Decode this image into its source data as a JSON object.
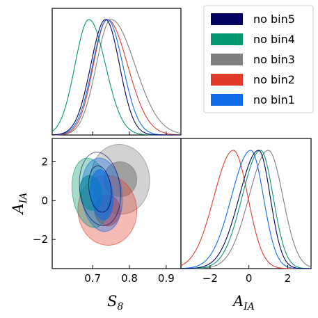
{
  "chart_data": {
    "type": "triangle-corner-plot",
    "colors": {
      "no bin5": "#00025e",
      "no bin4": "#009870",
      "no bin3": "#7f7f7f",
      "no bin2": "#e23b2a",
      "no bin1": "#0e6de6"
    },
    "legend": {
      "placement": "top-right",
      "entries": [
        "no bin5",
        "no bin4",
        "no bin3",
        "no bin2",
        "no bin1"
      ]
    },
    "axes": {
      "S8": {
        "label": "S_8",
        "range": [
          0.59,
          0.94
        ],
        "ticks": [
          "0.7",
          "0.8",
          "0.9"
        ],
        "tick_values": [
          0.7,
          0.8,
          0.9
        ]
      },
      "AIA": {
        "label": "A_IA",
        "range": [
          -3.5,
          3.2
        ],
        "ticks": [
          "−2",
          "0",
          "2"
        ],
        "tick_values": [
          -2,
          0,
          2
        ]
      }
    },
    "marginal_S8": [
      {
        "name": "no bin5",
        "peak": 0.735,
        "sigma_left": 0.04,
        "sigma_right": 0.038
      },
      {
        "name": "no bin4",
        "peak": 0.69,
        "sigma_left": 0.038,
        "sigma_right": 0.045
      },
      {
        "name": "no bin3",
        "peak": 0.75,
        "sigma_left": 0.04,
        "sigma_right": 0.065
      },
      {
        "name": "no bin2",
        "peak": 0.74,
        "sigma_left": 0.038,
        "sigma_right": 0.055
      },
      {
        "name": "no bin1",
        "peak": 0.74,
        "sigma_left": 0.04,
        "sigma_right": 0.042
      }
    ],
    "marginal_AIA": [
      {
        "name": "no bin5",
        "peak": 0.5,
        "sigma_left": 1.0,
        "sigma_right": 0.6
      },
      {
        "name": "no bin4",
        "peak": 0.6,
        "sigma_left": 0.95,
        "sigma_right": 0.65
      },
      {
        "name": "no bin3",
        "peak": 1.0,
        "sigma_left": 1.0,
        "sigma_right": 0.75
      },
      {
        "name": "no bin2",
        "peak": -0.8,
        "sigma_left": 1.0,
        "sigma_right": 0.75
      },
      {
        "name": "no bin1",
        "peak": 0.1,
        "sigma_left": 1.0,
        "sigma_right": 0.65
      }
    ],
    "joint_contours": [
      {
        "name": "no bin3",
        "center": [
          0.775,
          1.1
        ],
        "inner": [
          0.045,
          0.9
        ],
        "outer": [
          0.08,
          1.8
        ],
        "rotation": -6
      },
      {
        "name": "no bin2",
        "center": [
          0.74,
          -0.5
        ],
        "inner": [
          0.035,
          0.8
        ],
        "outer": [
          0.08,
          1.8
        ],
        "rotation": -4
      },
      {
        "name": "no bin4",
        "center": [
          0.695,
          0.4
        ],
        "inner": [
          0.03,
          0.9
        ],
        "outer": [
          0.05,
          1.8
        ],
        "rotation": -8
      },
      {
        "name": "no bin1",
        "center": [
          0.725,
          0.3
        ],
        "inner": [
          0.03,
          1.3
        ],
        "outer": [
          0.055,
          1.9
        ],
        "rotation": -6
      },
      {
        "name": "no bin5",
        "center": [
          0.72,
          0.6
        ],
        "inner": [
          0.03,
          1.2
        ],
        "outer": [
          0.055,
          1.9
        ],
        "rotation": -7
      }
    ]
  }
}
